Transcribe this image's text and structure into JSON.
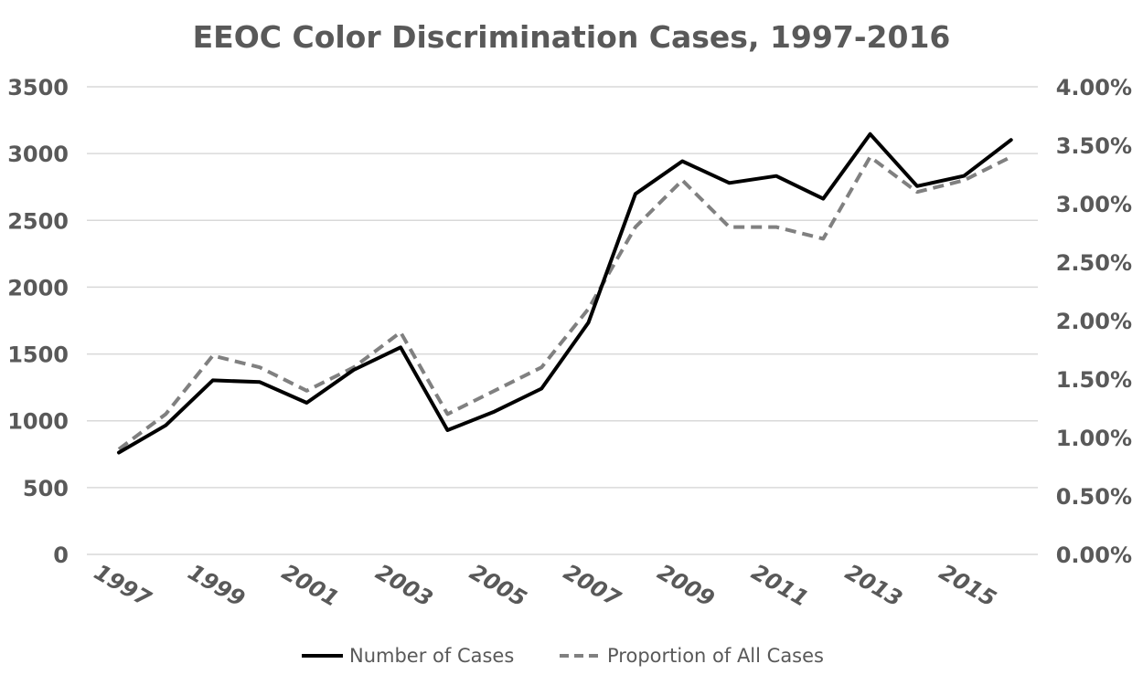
{
  "chart_data": {
    "type": "line",
    "title": "EEOC Color Discrimination Cases, 1997-2016",
    "x": [
      1997,
      1998,
      1999,
      2000,
      2001,
      2002,
      2003,
      2004,
      2005,
      2006,
      2007,
      2008,
      2009,
      2010,
      2011,
      2012,
      2013,
      2014,
      2015,
      2016
    ],
    "x_tick_labels": [
      "1997",
      "1999",
      "2001",
      "2003",
      "2005",
      "2007",
      "2009",
      "2011",
      "2013",
      "2015"
    ],
    "y_left": {
      "lim": [
        0,
        3500
      ],
      "ticks": [
        "0",
        "500",
        "1000",
        "1500",
        "2000",
        "2500",
        "3000",
        "3500"
      ]
    },
    "y_right": {
      "lim": [
        0,
        4.0
      ],
      "ticks": [
        "0.00%",
        "0.50%",
        "1.00%",
        "1.50%",
        "2.00%",
        "2.50%",
        "3.00%",
        "3.50%",
        "4.00%"
      ]
    },
    "series": [
      {
        "name": "Number of Cases",
        "axis": "left",
        "style": "solid",
        "color": "#000000",
        "values": [
          762,
          966,
          1303,
          1290,
          1135,
          1381,
          1550,
          930,
          1069,
          1241,
          1735,
          2698,
          2943,
          2780,
          2832,
          2662,
          3146,
          2756,
          2833,
          3102
        ]
      },
      {
        "name": "Proportion of All Cases",
        "axis": "right",
        "style": "dashed",
        "color": "#808080",
        "values": [
          0.9,
          1.2,
          1.7,
          1.6,
          1.4,
          1.6,
          1.9,
          1.2,
          1.4,
          1.6,
          2.1,
          2.8,
          3.2,
          2.8,
          2.8,
          2.7,
          3.4,
          3.1,
          3.2,
          3.4
        ]
      }
    ],
    "grid": true,
    "legend_position": "bottom"
  }
}
